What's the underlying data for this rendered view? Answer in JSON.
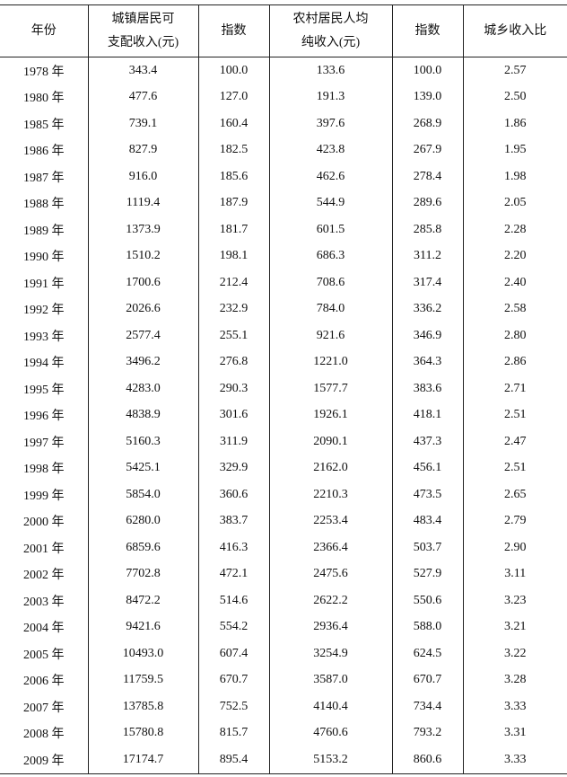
{
  "table": {
    "header": [
      [
        "年份"
      ],
      [
        "城镇居民可",
        "支配收入(元)"
      ],
      [
        "指数"
      ],
      [
        "农村居民人均",
        "纯收入(元)"
      ],
      [
        "指数"
      ],
      [
        "城乡收入比"
      ]
    ],
    "rows": [
      [
        "1978 年",
        "343.4",
        "100.0",
        "133.6",
        "100.0",
        "2.57"
      ],
      [
        "1980 年",
        "477.6",
        "127.0",
        "191.3",
        "139.0",
        "2.50"
      ],
      [
        "1985 年",
        "739.1",
        "160.4",
        "397.6",
        "268.9",
        "1.86"
      ],
      [
        "1986 年",
        "827.9",
        "182.5",
        "423.8",
        "267.9",
        "1.95"
      ],
      [
        "1987 年",
        "916.0",
        "185.6",
        "462.6",
        "278.4",
        "1.98"
      ],
      [
        "1988 年",
        "1119.4",
        "187.9",
        "544.9",
        "289.6",
        "2.05"
      ],
      [
        "1989 年",
        "1373.9",
        "181.7",
        "601.5",
        "285.8",
        "2.28"
      ],
      [
        "1990 年",
        "1510.2",
        "198.1",
        "686.3",
        "311.2",
        "2.20"
      ],
      [
        "1991 年",
        "1700.6",
        "212.4",
        "708.6",
        "317.4",
        "2.40"
      ],
      [
        "1992 年",
        "2026.6",
        "232.9",
        "784.0",
        "336.2",
        "2.58"
      ],
      [
        "1993 年",
        "2577.4",
        "255.1",
        "921.6",
        "346.9",
        "2.80"
      ],
      [
        "1994 年",
        "3496.2",
        "276.8",
        "1221.0",
        "364.3",
        "2.86"
      ],
      [
        "1995 年",
        "4283.0",
        "290.3",
        "1577.7",
        "383.6",
        "2.71"
      ],
      [
        "1996 年",
        "4838.9",
        "301.6",
        "1926.1",
        "418.1",
        "2.51"
      ],
      [
        "1997 年",
        "5160.3",
        "311.9",
        "2090.1",
        "437.3",
        "2.47"
      ],
      [
        "1998 年",
        "5425.1",
        "329.9",
        "2162.0",
        "456.1",
        "2.51"
      ],
      [
        "1999 年",
        "5854.0",
        "360.6",
        "2210.3",
        "473.5",
        "2.65"
      ],
      [
        "2000 年",
        "6280.0",
        "383.7",
        "2253.4",
        "483.4",
        "2.79"
      ],
      [
        "2001 年",
        "6859.6",
        "416.3",
        "2366.4",
        "503.7",
        "2.90"
      ],
      [
        "2002 年",
        "7702.8",
        "472.1",
        "2475.6",
        "527.9",
        "3.11"
      ],
      [
        "2003 年",
        "8472.2",
        "514.6",
        "2622.2",
        "550.6",
        "3.23"
      ],
      [
        "2004 年",
        "9421.6",
        "554.2",
        "2936.4",
        "588.0",
        "3.21"
      ],
      [
        "2005 年",
        "10493.0",
        "607.4",
        "3254.9",
        "624.5",
        "3.22"
      ],
      [
        "2006 年",
        "11759.5",
        "670.7",
        "3587.0",
        "670.7",
        "3.28"
      ],
      [
        "2007 年",
        "13785.8",
        "752.5",
        "4140.4",
        "734.4",
        "3.33"
      ],
      [
        "2008 年",
        "15780.8",
        "815.7",
        "4760.6",
        "793.2",
        "3.31"
      ],
      [
        "2009 年",
        "17174.7",
        "895.4",
        "5153.2",
        "860.6",
        "3.33"
      ]
    ]
  }
}
